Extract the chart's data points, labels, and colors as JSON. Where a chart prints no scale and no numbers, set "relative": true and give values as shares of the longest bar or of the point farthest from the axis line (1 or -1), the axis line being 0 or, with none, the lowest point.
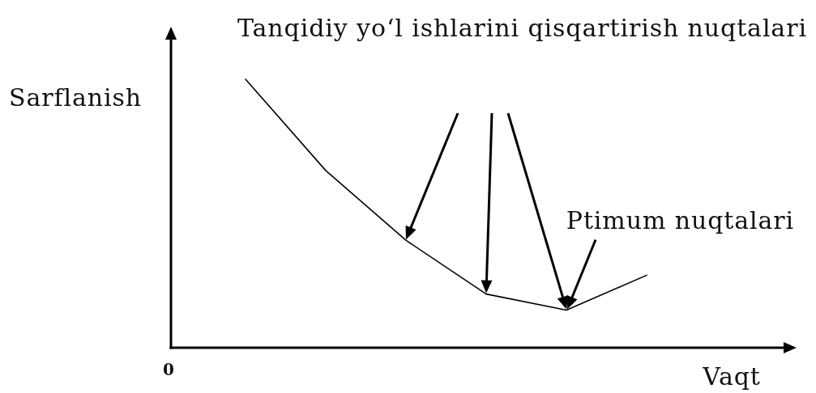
{
  "chart_data": {
    "type": "line",
    "title": "Tanqidiy yo‘l ishlarini qisqartirish nuqtalari",
    "xlabel": "Vaqt",
    "ylabel": "Sarflanish",
    "categories": [
      null,
      null,
      null,
      null,
      null,
      null
    ],
    "values": [
      1.0,
      0.66,
      0.4,
      0.2,
      0.14,
      0.27
    ],
    "color": "#000000",
    "relative": true,
    "annotations": [
      "0",
      "Ptimum nuqtalari"
    ]
  }
}
